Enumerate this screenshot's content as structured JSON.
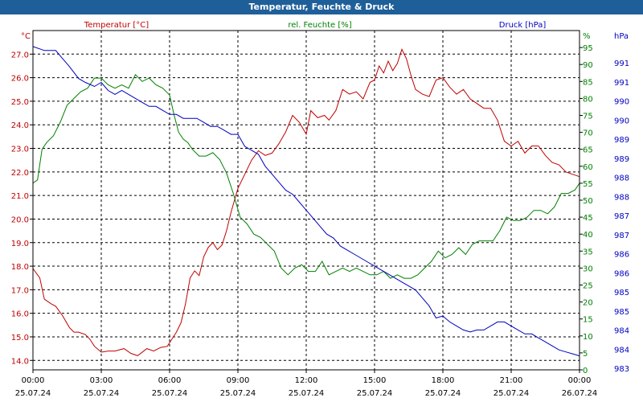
{
  "window": {
    "title": "Temperatur, Feuchte & Druck"
  },
  "chart_data": {
    "type": "line",
    "title": "Temperatur, Feuchte & Druck",
    "grid": true,
    "x_ticks": [
      {
        "time": "00:00",
        "date": "25.07.24"
      },
      {
        "time": "03:00",
        "date": "25.07.24"
      },
      {
        "time": "06:00",
        "date": "25.07.24"
      },
      {
        "time": "09:00",
        "date": "25.07.24"
      },
      {
        "time": "12:00",
        "date": "25.07.24"
      },
      {
        "time": "15:00",
        "date": "25.07.24"
      },
      {
        "time": "18:00",
        "date": "25.07.24"
      },
      {
        "time": "21:00",
        "date": "25.07.24"
      },
      {
        "time": "00:00",
        "date": "26.07.24"
      }
    ],
    "x_range_hours": [
      0,
      24
    ],
    "axes": {
      "temperature": {
        "label": "Temperatur [°C]",
        "unit": "°C",
        "min": 13.6,
        "max": 28.0,
        "ticks": [
          "14.0",
          "15.0",
          "16.0",
          "17.0",
          "18.0",
          "19.0",
          "20.0",
          "21.0",
          "22.0",
          "23.0",
          "24.0",
          "25.0",
          "26.0",
          "27.0"
        ],
        "color": "#c00000"
      },
      "humidity": {
        "label": "rel. Feuchte [%]",
        "unit": "%",
        "min": 0,
        "max": 100,
        "ticks": [
          "0",
          "5",
          "10",
          "15",
          "20",
          "25",
          "30",
          "35",
          "40",
          "45",
          "50",
          "55",
          "60",
          "65",
          "70",
          "75",
          "80",
          "85",
          "90",
          "95"
        ],
        "color": "#008000"
      },
      "pressure": {
        "label": "Druck [hPa]",
        "unit": "hPa",
        "min": 983,
        "max": 991.5,
        "ticks": [
          "983",
          "984",
          "984",
          "985",
          "985",
          "986",
          "986",
          "987",
          "987",
          "988",
          "988",
          "989",
          "989",
          "990",
          "990",
          "991",
          "991"
        ],
        "color": "#0000c0"
      }
    },
    "series": [
      {
        "name": "Temperatur [°C]",
        "axis": "temperature",
        "color": "#c00000",
        "x": [
          0,
          0.3,
          0.5,
          0.8,
          1.0,
          1.3,
          1.6,
          1.8,
          2.0,
          2.3,
          2.5,
          2.7,
          3.0,
          3.3,
          3.6,
          4.0,
          4.3,
          4.6,
          5.0,
          5.3,
          5.6,
          5.9,
          6.1,
          6.3,
          6.5,
          6.7,
          6.9,
          7.1,
          7.3,
          7.5,
          7.7,
          7.9,
          8.1,
          8.3,
          8.5,
          8.7,
          9.0,
          9.3,
          9.6,
          9.9,
          10.2,
          10.5,
          10.8,
          11.1,
          11.4,
          11.7,
          12.0,
          12.2,
          12.5,
          12.8,
          13.0,
          13.3,
          13.6,
          13.9,
          14.2,
          14.5,
          14.8,
          15.0,
          15.2,
          15.4,
          15.6,
          15.8,
          16.0,
          16.2,
          16.4,
          16.6,
          16.8,
          17.1,
          17.4,
          17.7,
          18.0,
          18.3,
          18.6,
          18.9,
          19.2,
          19.5,
          19.8,
          20.1,
          20.4,
          20.7,
          21.0,
          21.3,
          21.6,
          21.9,
          22.2,
          22.5,
          22.8,
          23.1,
          23.4,
          23.7,
          24.0
        ],
        "y": [
          17.9,
          17.5,
          16.6,
          16.4,
          16.3,
          15.9,
          15.4,
          15.2,
          15.2,
          15.1,
          14.9,
          14.6,
          14.35,
          14.4,
          14.4,
          14.5,
          14.3,
          14.2,
          14.5,
          14.4,
          14.55,
          14.6,
          14.9,
          15.2,
          15.6,
          16.4,
          17.5,
          17.8,
          17.6,
          18.4,
          18.8,
          19.0,
          18.7,
          18.9,
          19.5,
          20.3,
          21.3,
          21.9,
          22.5,
          22.9,
          22.7,
          22.8,
          23.2,
          23.7,
          24.4,
          24.1,
          23.6,
          24.6,
          24.3,
          24.4,
          24.2,
          24.6,
          25.5,
          25.3,
          25.4,
          25.1,
          25.8,
          25.9,
          26.5,
          26.2,
          26.7,
          26.3,
          26.6,
          27.2,
          26.8,
          26.1,
          25.5,
          25.3,
          25.2,
          25.9,
          26.0,
          25.6,
          25.3,
          25.5,
          25.1,
          24.9,
          24.7,
          24.7,
          24.2,
          23.3,
          23.1,
          23.3,
          22.8,
          23.1,
          23.1,
          22.7,
          22.4,
          22.3,
          22.0,
          21.9,
          21.8
        ]
      },
      {
        "name": "rel. Feuchte [%]",
        "axis": "humidity",
        "color": "#008000",
        "x": [
          0,
          0.2,
          0.4,
          0.6,
          0.9,
          1.2,
          1.5,
          1.8,
          2.1,
          2.4,
          2.7,
          3.0,
          3.3,
          3.6,
          3.9,
          4.2,
          4.5,
          4.8,
          5.1,
          5.4,
          5.7,
          6.0,
          6.2,
          6.4,
          6.6,
          6.8,
          7.0,
          7.3,
          7.6,
          7.9,
          8.2,
          8.5,
          8.8,
          9.1,
          9.4,
          9.7,
          10.0,
          10.3,
          10.6,
          10.9,
          11.2,
          11.5,
          11.8,
          12.1,
          12.4,
          12.7,
          13.0,
          13.3,
          13.6,
          13.9,
          14.2,
          14.5,
          14.8,
          15.1,
          15.4,
          15.7,
          16.0,
          16.3,
          16.6,
          16.9,
          17.2,
          17.5,
          17.8,
          18.1,
          18.4,
          18.7,
          19.0,
          19.3,
          19.6,
          19.9,
          20.2,
          20.5,
          20.8,
          21.1,
          21.4,
          21.7,
          22.0,
          22.3,
          22.6,
          22.9,
          23.2,
          23.5,
          23.8,
          24.0
        ],
        "y": [
          55,
          56,
          65,
          67,
          69,
          73,
          78,
          80,
          82,
          83,
          86,
          86,
          84,
          83,
          84,
          83,
          87,
          85,
          86,
          84,
          83,
          81,
          75,
          70,
          68,
          67,
          65,
          63,
          63,
          64,
          62,
          58,
          52,
          45,
          43,
          40,
          39,
          37,
          35,
          30,
          28,
          30,
          31,
          29,
          29,
          32,
          28,
          29,
          30,
          29,
          30,
          29,
          28,
          28,
          29,
          27,
          28,
          27,
          27,
          28,
          30,
          32,
          35,
          33,
          34,
          36,
          34,
          37,
          38,
          38,
          38,
          41,
          45,
          44,
          44,
          45,
          47,
          47,
          46,
          48,
          52,
          52,
          53,
          55
        ]
      },
      {
        "name": "Druck [hPa]",
        "axis": "pressure",
        "color": "#0000c0",
        "x": [
          0,
          0.5,
          1.0,
          1.3,
          1.6,
          2.0,
          2.3,
          2.7,
          3.0,
          3.3,
          3.6,
          3.9,
          4.2,
          4.5,
          4.8,
          5.1,
          5.4,
          5.7,
          6.0,
          6.3,
          6.6,
          6.9,
          7.2,
          7.5,
          7.8,
          8.1,
          8.4,
          8.7,
          9.0,
          9.3,
          9.6,
          9.9,
          10.2,
          10.5,
          10.8,
          11.1,
          11.4,
          11.7,
          12.0,
          12.3,
          12.6,
          12.9,
          13.2,
          13.5,
          13.8,
          14.1,
          14.4,
          14.7,
          15.0,
          15.3,
          15.6,
          15.9,
          16.2,
          16.5,
          16.8,
          17.1,
          17.4,
          17.7,
          18.0,
          18.3,
          18.6,
          18.9,
          19.2,
          19.5,
          19.8,
          20.1,
          20.4,
          20.7,
          21.0,
          21.3,
          21.6,
          21.9,
          22.2,
          22.5,
          22.8,
          23.1,
          23.4,
          23.7,
          24.0
        ],
        "y": [
          991.1,
          991.0,
          991.0,
          990.8,
          990.6,
          990.3,
          990.2,
          990.1,
          990.2,
          990.0,
          989.9,
          990.0,
          989.9,
          989.8,
          989.7,
          989.6,
          989.6,
          989.5,
          989.4,
          989.4,
          989.3,
          989.3,
          989.3,
          989.2,
          989.1,
          989.1,
          989.0,
          988.9,
          988.9,
          988.6,
          988.5,
          988.4,
          988.1,
          987.9,
          987.7,
          987.5,
          987.4,
          987.2,
          987.0,
          986.8,
          986.6,
          986.4,
          986.3,
          986.1,
          986.0,
          985.9,
          985.8,
          985.7,
          985.6,
          985.5,
          985.4,
          985.3,
          985.2,
          985.1,
          985.0,
          984.8,
          984.6,
          984.3,
          984.35,
          984.2,
          984.1,
          984.0,
          983.95,
          984.0,
          984.0,
          984.1,
          984.2,
          984.2,
          984.1,
          984.0,
          983.9,
          983.9,
          983.8,
          983.7,
          983.6,
          983.5,
          983.45,
          983.4,
          983.35
        ]
      }
    ]
  }
}
